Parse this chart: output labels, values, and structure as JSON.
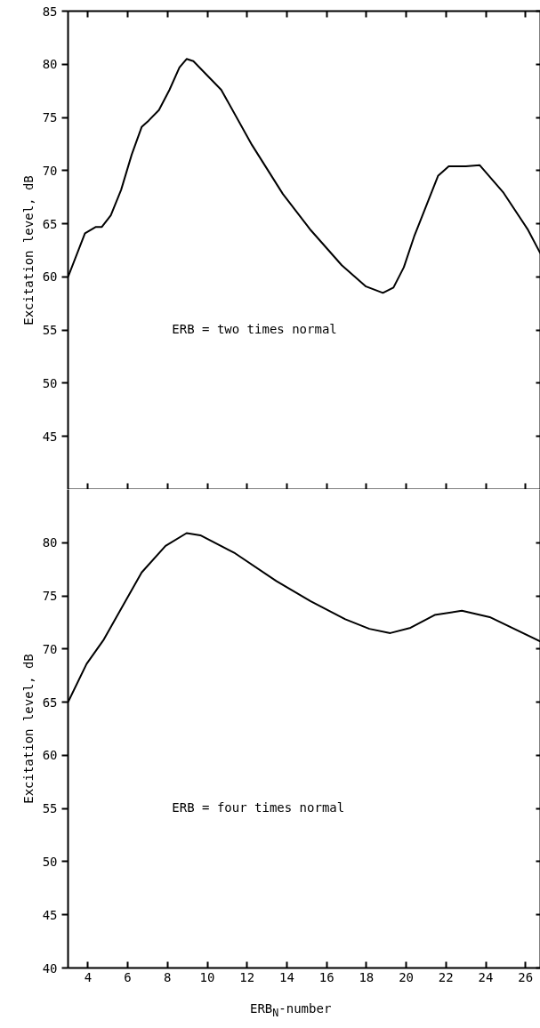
{
  "chart_data": [
    {
      "type": "line",
      "ylabel": "Excitation level, dB",
      "annotations": [
        "ERB = two times normal"
      ],
      "xlim": [
        3,
        26.75
      ],
      "ylim": [
        40,
        85
      ],
      "yticks": [
        45,
        50,
        55,
        60,
        65,
        70,
        75,
        80,
        85
      ],
      "xticks": [
        {
          "value": 4,
          "label": null
        },
        {
          "value": 6,
          "label": null
        },
        {
          "value": 8,
          "label": null
        },
        {
          "value": 10,
          "label": null
        },
        {
          "value": 12,
          "label": null
        },
        {
          "value": 14,
          "label": null
        },
        {
          "value": 16,
          "label": null
        },
        {
          "value": 18,
          "label": null
        },
        {
          "value": 20,
          "label": null
        },
        {
          "value": 22,
          "label": null
        },
        {
          "value": 24,
          "label": null
        },
        {
          "value": 26,
          "label": null
        }
      ],
      "tick_labels": "y",
      "line_style": "solid",
      "series": [
        {
          "color": "#000000",
          "x": [
            3,
            3.85,
            4.4,
            4.7,
            5.15,
            5.67,
            6.2,
            6.7,
            7.05,
            7.57,
            8.1,
            8.6,
            8.96,
            9.3,
            10.7,
            12.25,
            13.8,
            15.2,
            16.76,
            17.98,
            18.83,
            19.36,
            19.88,
            20.4,
            21.6,
            22.14,
            23.0,
            23.7,
            24.9,
            26.1,
            26.75
          ],
          "values": [
            60,
            64.1,
            64.7,
            64.7,
            65.8,
            68.2,
            71.5,
            74.1,
            74.7,
            75.7,
            77.6,
            79.7,
            80.5,
            80.3,
            77.6,
            72.4,
            67.8,
            64.4,
            61.1,
            59.1,
            58.5,
            59.0,
            60.9,
            63.8,
            69.5,
            70.4,
            70.4,
            70.5,
            67.9,
            64.5,
            62.2
          ]
        }
      ]
    },
    {
      "type": "line",
      "xlabel": "ERB$_{N}$-number",
      "ylabel": "Excitation level, dB",
      "annotations": [
        "ERB = four times normal"
      ],
      "xlim": [
        3,
        26.75
      ],
      "ylim": [
        40,
        85
      ],
      "yticks": [
        40,
        45,
        50,
        55,
        60,
        65,
        70,
        75,
        80
      ],
      "xticks": [
        4,
        6,
        8,
        10,
        12,
        14,
        16,
        18,
        20,
        22,
        24,
        26
      ],
      "line_style": "solid",
      "series": [
        {
          "color": "#000000",
          "x": [
            3,
            3.93,
            4.8,
            5.67,
            6.7,
            7.9,
            8.96,
            9.65,
            11.4,
            13.47,
            15.2,
            16.94,
            18.15,
            19.2,
            20.22,
            21.43,
            22.8,
            24.2,
            26.75
          ],
          "values": [
            65,
            68.6,
            70.9,
            73.8,
            77.2,
            79.7,
            80.9,
            80.7,
            79.0,
            76.4,
            74.5,
            72.8,
            71.9,
            71.5,
            72.0,
            73.2,
            73.6,
            73.0,
            70.7
          ]
        }
      ]
    }
  ]
}
